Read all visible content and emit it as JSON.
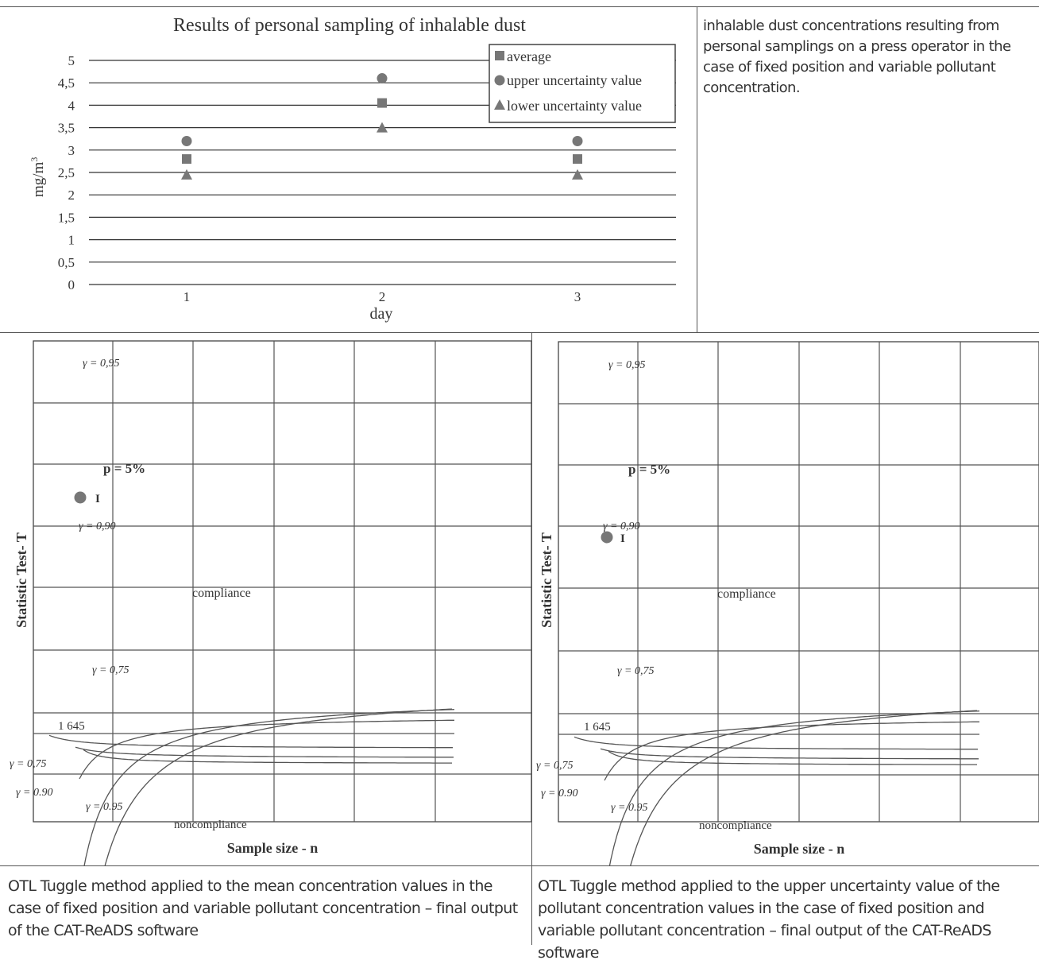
{
  "top_chart": {
    "chart_data": {
      "type": "scatter",
      "title": "Results of personal sampling of inhalable dust",
      "xlabel": "day",
      "ylabel": "mg/m",
      "ylabel_superscript": "3",
      "categories": [
        "1",
        "2",
        "3"
      ],
      "series": [
        {
          "name": "average",
          "marker": "square",
          "values": [
            2.8,
            4.05,
            2.8
          ]
        },
        {
          "name": "upper uncertainty value",
          "marker": "circle",
          "values": [
            3.2,
            4.6,
            3.2
          ]
        },
        {
          "name": "lower uncertainty value",
          "marker": "triangle",
          "values": [
            2.45,
            3.5,
            2.45
          ]
        }
      ],
      "ylim": [
        0,
        5
      ],
      "yticks": [
        "0",
        "0,5",
        "1",
        "1,5",
        "2",
        "2,5",
        "3",
        "3,5",
        "4",
        "4,5",
        "5"
      ],
      "grid": true,
      "legend_position": "top-right",
      "marker_color": "#777777"
    },
    "description": "inhalable dust concentrations resulting from personal samplings on a press operator in the case of fixed position and variable pollutant concentration."
  },
  "left_chart": {
    "chart_data": {
      "type": "line",
      "xlabel": "Sample size - n",
      "ylabel": "Statistic Test- T",
      "annotations": {
        "g95_top": "γ = 0,95",
        "p5": "p = 5%",
        "point_label": "I",
        "g90_top": "γ = 0,90",
        "compliance": "compliance",
        "g75_top": "γ = 0,75",
        "t1645": "1 645",
        "g75_bot": "γ = 0,75",
        "g90_bot": "γ = 0.90",
        "g95_bot": "γ = 0.95",
        "noncompliance": "noncompliance"
      }
    },
    "caption": "OTL Tuggle method applied to the mean concentration values in the case of fixed position and variable pollutant concentration – final output of the CAT-ReADS software"
  },
  "right_chart": {
    "chart_data": {
      "type": "line",
      "xlabel": "Sample size - n",
      "ylabel": "Statistic Test- T",
      "annotations": {
        "g95_top": "γ = 0,95",
        "p5": "p = 5%",
        "point_label": "I",
        "g90_top": "γ = 0,90",
        "compliance": "compliance",
        "g75_top": "γ = 0,75",
        "t1645": "1 645",
        "g75_bot": "γ = 0,75",
        "g90_bot": "γ = 0.90",
        "g95_bot": "γ = 0.95",
        "noncompliance": "noncompliance"
      }
    },
    "caption": "OTL Tuggle method applied to the upper uncertainty value of the pollutant concentration values in the case of fixed position and variable pollutant concentration – final output of the CAT-ReADS software"
  }
}
